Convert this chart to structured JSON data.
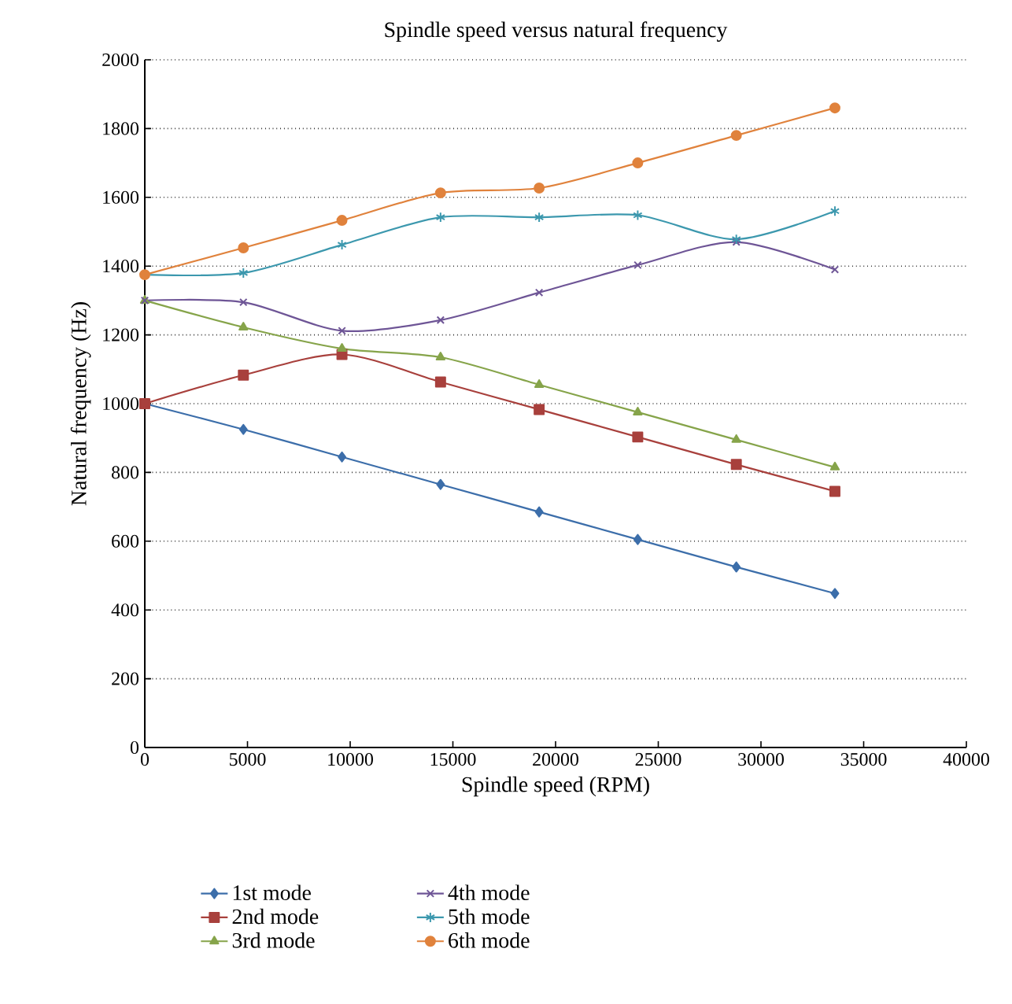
{
  "chart_data": {
    "type": "line",
    "title": "Spindle speed versus natural frequency",
    "xlabel": "Spindle speed (RPM)",
    "ylabel": "Natural frequency (Hz)",
    "x": [
      0,
      4800,
      9600,
      14400,
      19200,
      24000,
      28800,
      33600
    ],
    "xlim": [
      0,
      40000
    ],
    "xticks": [
      0,
      5000,
      10000,
      15000,
      20000,
      25000,
      30000,
      35000,
      40000
    ],
    "ylim": [
      0,
      2000
    ],
    "yticks": [
      0,
      200,
      400,
      600,
      800,
      1000,
      1200,
      1400,
      1600,
      1800,
      2000
    ],
    "grid": "y",
    "legend": "bottom",
    "line_style": "solid",
    "series": [
      {
        "name": "1st mode",
        "color": "#3c6eaa",
        "marker": "diamond",
        "values": [
          1000,
          925,
          845,
          765,
          685,
          605,
          525,
          448
        ]
      },
      {
        "name": "2nd mode",
        "color": "#a8403c",
        "marker": "square",
        "values": [
          1000,
          1083,
          1143,
          1063,
          983,
          903,
          823,
          745
        ]
      },
      {
        "name": "3rd mode",
        "color": "#86a44a",
        "marker": "triangle",
        "values": [
          1300,
          1222,
          1160,
          1135,
          1055,
          975,
          895,
          815
        ]
      },
      {
        "name": "4th mode",
        "color": "#6e5596",
        "marker": "cross",
        "values": [
          1300,
          1295,
          1212,
          1243,
          1323,
          1403,
          1470,
          1390
        ]
      },
      {
        "name": "5th mode",
        "color": "#3c98ae",
        "marker": "cross",
        "values": [
          1375,
          1380,
          1462,
          1542,
          1542,
          1548,
          1478,
          1560
        ]
      },
      {
        "name": "6th mode",
        "color": "#e0823c",
        "marker": "circle",
        "values": [
          1375,
          1453,
          1533,
          1613,
          1627,
          1700,
          1780,
          1860
        ]
      }
    ]
  }
}
